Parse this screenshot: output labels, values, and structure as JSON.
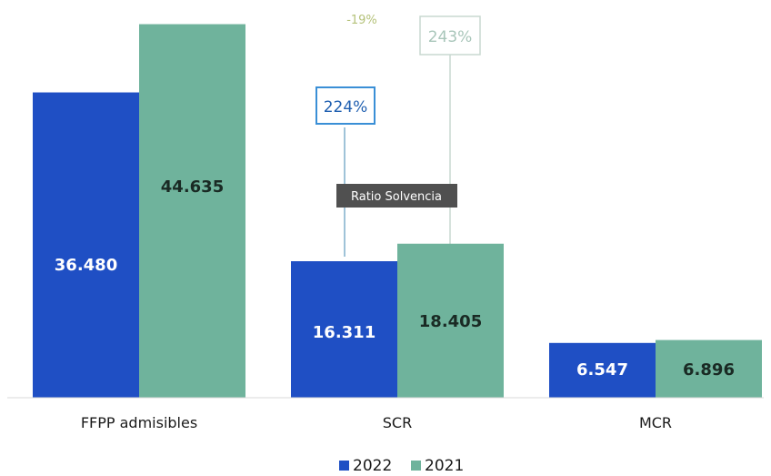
{
  "chart_data": {
    "type": "bar",
    "categories": [
      "FFPP admisibles",
      "SCR",
      "MCR"
    ],
    "series": [
      {
        "name": "2022",
        "values": [
          36480,
          16311,
          6547
        ],
        "labels": [
          "36.480",
          "16.311",
          "6.547"
        ],
        "color": "#1f4fc4"
      },
      {
        "name": "2021",
        "values": [
          44635,
          18405,
          6896
        ],
        "labels": [
          "44.635",
          "18.405",
          "6.896"
        ],
        "color": "#6fb39c"
      }
    ],
    "ylim": [
      0,
      46000
    ],
    "grid": false,
    "legend": "bottom-center",
    "annotations": {
      "ratio_2022": "224%",
      "ratio_2021": "243%",
      "ratio_change": "-19%",
      "ratio_label": "Ratio Solvencia"
    },
    "colors": {
      "ratio_2022_border": "#3a8fd6",
      "ratio_2022_text": "#1f5fb0",
      "ratio_2021_border": "#c8d8d0",
      "ratio_2021_text": "#a9c6ba",
      "ratio_change_text": "#b5c27a",
      "callout_bg": "#505050",
      "connector": "#9fc3d8",
      "bar_label_light": "#ffffff",
      "bar_label_dark": "#1a2a24"
    }
  }
}
